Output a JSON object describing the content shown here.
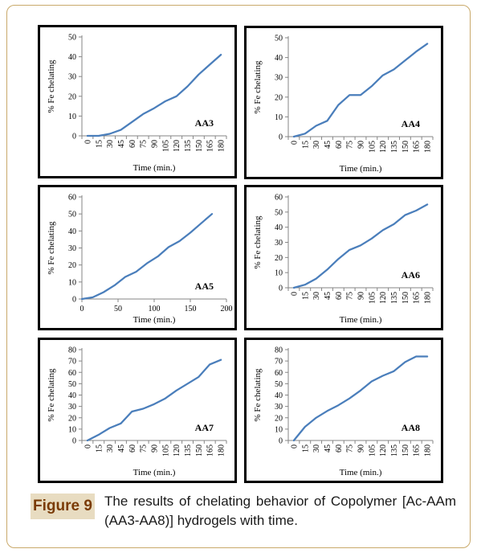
{
  "caption": {
    "label": "Figure 9",
    "text": "The results of chelating behavior of Copolymer [Ac-AAm (AA3-AA8)] hydrogels with time."
  },
  "colors": {
    "line": "#4a7ebb",
    "border": "#000000",
    "frame": "#c9a96a",
    "label_bg": "#e8dcc1",
    "label_text": "#7a3b06"
  },
  "chart_data": [
    {
      "type": "line",
      "title": "AA3",
      "xlabel": "Time (min.)",
      "ylabel": "% Fe chelating",
      "x_axis": "category",
      "x_tick_rotation": "vertical",
      "ylim": [
        0,
        50
      ],
      "yticks": [
        0,
        10,
        20,
        30,
        40,
        50
      ],
      "x": [
        0,
        15,
        30,
        45,
        60,
        75,
        90,
        105,
        120,
        135,
        150,
        165,
        180
      ],
      "xtick_labels": [
        "0",
        "15",
        "30",
        "45",
        "60",
        "75",
        "90",
        "105",
        "120",
        "135",
        "150",
        "165",
        "180"
      ],
      "y": [
        0,
        0,
        1,
        3,
        7,
        11,
        14,
        17.5,
        20,
        25,
        31,
        36,
        41
      ]
    },
    {
      "type": "line",
      "title": "AA4",
      "xlabel": "Time (min.)",
      "ylabel": "% Fe chelating",
      "x_axis": "category",
      "x_tick_rotation": "vertical",
      "ylim": [
        0,
        50
      ],
      "yticks": [
        0,
        10,
        20,
        30,
        40,
        50
      ],
      "x": [
        0,
        15,
        30,
        45,
        60,
        75,
        90,
        105,
        120,
        135,
        150,
        165,
        180
      ],
      "xtick_labels": [
        "0",
        "15",
        "30",
        "45",
        "60",
        "75",
        "90",
        "105",
        "120",
        "135",
        "150",
        "165",
        "180"
      ],
      "y": [
        0,
        1.5,
        5.5,
        8,
        16,
        21,
        21,
        25.5,
        31,
        34,
        38.5,
        43,
        47
      ]
    },
    {
      "type": "line",
      "title": "AA5",
      "xlabel": "Time (min.)",
      "ylabel": "% Fe chelating",
      "x_axis": "numeric",
      "x_tick_rotation": "horizontal",
      "ylim": [
        0,
        60
      ],
      "yticks": [
        0,
        10,
        20,
        30,
        40,
        50,
        60
      ],
      "xlim": [
        0,
        200
      ],
      "xticks": [
        0,
        50,
        100,
        150,
        200
      ],
      "x": [
        0,
        15,
        30,
        45,
        60,
        75,
        90,
        105,
        120,
        135,
        150,
        165,
        180
      ],
      "y": [
        0,
        1,
        4,
        8,
        13,
        16,
        21,
        25,
        30.5,
        34,
        39,
        44.5,
        50
      ]
    },
    {
      "type": "line",
      "title": "AA6",
      "xlabel": "Time (min.)",
      "ylabel": "% Fe chelating",
      "x_axis": "category",
      "x_tick_rotation": "vertical",
      "ylim": [
        0,
        60
      ],
      "yticks": [
        0,
        10,
        20,
        30,
        40,
        50,
        60
      ],
      "x": [
        0,
        15,
        30,
        45,
        60,
        75,
        90,
        105,
        120,
        135,
        150,
        165,
        180
      ],
      "xtick_labels": [
        "0",
        "15",
        "30",
        "45",
        "60",
        "75",
        "90",
        "105",
        "120",
        "135",
        "150",
        "165",
        "180"
      ],
      "y": [
        0,
        2,
        6,
        12,
        19,
        25,
        28,
        32.5,
        38,
        42,
        48,
        51,
        55
      ]
    },
    {
      "type": "line",
      "title": "AA7",
      "xlabel": "Time (min.)",
      "ylabel": "% Fe chelating",
      "x_axis": "category",
      "x_tick_rotation": "vertical",
      "ylim": [
        0,
        80
      ],
      "yticks": [
        0,
        10,
        20,
        30,
        40,
        50,
        60,
        70,
        80
      ],
      "x": [
        0,
        15,
        30,
        45,
        60,
        75,
        90,
        105,
        120,
        135,
        150,
        165,
        180
      ],
      "xtick_labels": [
        "0",
        "15",
        "30",
        "45",
        "60",
        "75",
        "90",
        "105",
        "120",
        "135",
        "150",
        "165",
        "180"
      ],
      "y": [
        0,
        5,
        11,
        15,
        25.5,
        28,
        32,
        37,
        44,
        50,
        56,
        67,
        71
      ]
    },
    {
      "type": "line",
      "title": "AA8",
      "xlabel": "Time (min.)",
      "ylabel": "% Fe chelating",
      "x_axis": "category",
      "x_tick_rotation": "vertical",
      "ylim": [
        0,
        80
      ],
      "yticks": [
        0,
        10,
        20,
        30,
        40,
        50,
        60,
        70,
        80
      ],
      "x": [
        0,
        15,
        30,
        45,
        60,
        75,
        90,
        105,
        120,
        135,
        150,
        165,
        180
      ],
      "xtick_labels": [
        "0",
        "15",
        "30",
        "45",
        "60",
        "75",
        "90",
        "105",
        "120",
        "135",
        "150",
        "165",
        "180"
      ],
      "y": [
        0,
        12,
        20,
        26,
        31,
        37,
        44,
        52,
        57,
        61,
        69,
        74,
        74
      ]
    }
  ]
}
